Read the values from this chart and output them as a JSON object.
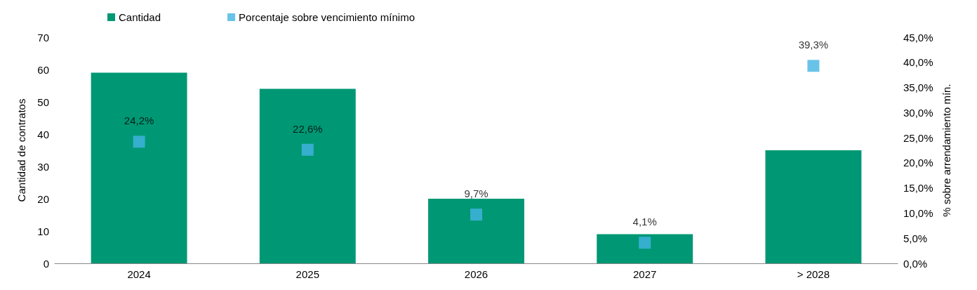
{
  "chart_data": {
    "type": "bar",
    "categories": [
      "2024",
      "2025",
      "2026",
      "2027",
      "> 2028"
    ],
    "ylabel": "Cantidad de contratos",
    "y2label": "% sobre arrendamiento mín.",
    "series": [
      {
        "name": "Cantidad",
        "color": "#009874",
        "values": [
          59,
          54,
          20,
          9,
          35
        ]
      },
      {
        "name": "Porcentaje sobre vencimiento mínimo",
        "type": "scatter",
        "axis": "y2",
        "color": "#44b4e4",
        "marker": "square",
        "values": [
          24.2,
          22.6,
          9.7,
          4.1,
          39.3
        ],
        "value_labels": [
          "24,2%",
          "22,6%",
          "9,7%",
          "4,1%",
          "39,3%"
        ]
      }
    ],
    "ylim": [
      0,
      70
    ],
    "yticks": [
      0,
      10,
      20,
      30,
      40,
      50,
      60,
      70
    ],
    "y2lim": [
      0,
      45
    ],
    "y2ticks": [
      {
        "value": 0,
        "label": "0,0%"
      },
      {
        "value": 5,
        "label": "5,0%"
      },
      {
        "value": 10,
        "label": "10,0%"
      },
      {
        "value": 15,
        "label": "15,0%"
      },
      {
        "value": 20,
        "label": "20,0%"
      },
      {
        "value": 25,
        "label": "25,0%"
      },
      {
        "value": 30,
        "label": "30,0%"
      },
      {
        "value": 35,
        "label": "35,0%"
      },
      {
        "value": 40,
        "label": "40,0%"
      },
      {
        "value": 45,
        "label": "45,0%"
      }
    ],
    "legend": "top left",
    "grid": false
  }
}
